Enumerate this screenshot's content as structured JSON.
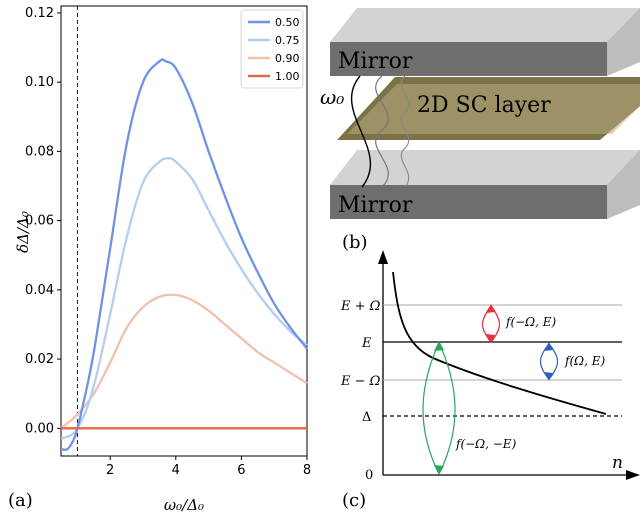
{
  "chart_data": {
    "type": "line",
    "panel_label": "(a)",
    "xlabel": "ω₀/Δ₀",
    "ylabel": "δΔ/Δ₀",
    "xlim": [
      0.5,
      8
    ],
    "ylim": [
      -0.008,
      0.122
    ],
    "x_ticks": [
      "2",
      "4",
      "6",
      "8"
    ],
    "y_ticks": [
      "0.00",
      "0.02",
      "0.04",
      "0.06",
      "0.08",
      "0.10",
      "0.12"
    ],
    "x_tick_values": [
      2,
      4,
      6,
      8
    ],
    "y_tick_values": [
      0,
      0.02,
      0.04,
      0.06,
      0.08,
      0.1,
      0.12
    ],
    "vline_x": 1.0,
    "zero_line_y": 0.0,
    "legend_position": "top-right",
    "series": [
      {
        "name": "0.50",
        "color": "#6f92e6",
        "x": [
          0.5,
          0.7,
          0.9,
          1.0,
          1.2,
          1.5,
          2.0,
          2.5,
          3.0,
          3.5,
          3.7,
          4.0,
          4.5,
          5.0,
          5.5,
          6.0,
          6.5,
          7.0,
          7.5,
          8.0
        ],
        "y": [
          -0.006,
          -0.006,
          -0.003,
          0.0,
          0.008,
          0.022,
          0.052,
          0.082,
          0.1,
          0.106,
          0.106,
          0.104,
          0.094,
          0.08,
          0.067,
          0.055,
          0.045,
          0.036,
          0.029,
          0.023
        ]
      },
      {
        "name": "0.75",
        "color": "#b5cdf0",
        "x": [
          0.5,
          0.8,
          1.0,
          1.3,
          1.6,
          2.0,
          2.5,
          3.0,
          3.5,
          3.8,
          4.0,
          4.5,
          5.0,
          5.5,
          6.0,
          6.5,
          7.0,
          7.5,
          8.0
        ],
        "y": [
          -0.003,
          -0.002,
          0.0,
          0.006,
          0.016,
          0.033,
          0.055,
          0.071,
          0.077,
          0.078,
          0.077,
          0.072,
          0.063,
          0.054,
          0.046,
          0.039,
          0.033,
          0.028,
          0.024
        ]
      },
      {
        "name": "0.90",
        "color": "#efc1aa",
        "x": [
          0.5,
          1.0,
          1.5,
          2.0,
          2.5,
          3.0,
          3.5,
          4.0,
          4.5,
          5.0,
          5.5,
          6.0,
          6.5,
          7.0,
          7.5,
          8.0
        ],
        "y": [
          0.0,
          0.004,
          0.01,
          0.019,
          0.029,
          0.035,
          0.038,
          0.0385,
          0.037,
          0.034,
          0.03,
          0.026,
          0.022,
          0.019,
          0.016,
          0.013
        ]
      },
      {
        "name": "1.00",
        "color": "#e06a45",
        "x": [
          0.5,
          8.0
        ],
        "y": [
          0.0,
          0.0
        ]
      }
    ]
  },
  "diagram_b": {
    "panel_label": "(b)",
    "top_mirror": "Mirror",
    "bottom_mirror": "Mirror",
    "layer": "2D SC layer",
    "omega_label": "ω₀"
  },
  "diagram_c": {
    "panel_label": "(c)",
    "x_axis": "n",
    "levels": [
      "E + Ω",
      "E",
      "E − Ω",
      "Δ",
      "0"
    ],
    "red_arrow": "f(−Ω, E)",
    "blue_arrow": "f(Ω, E)",
    "green_arrow": "f(−Ω, −E)",
    "colors": {
      "red": "#e8303a",
      "blue": "#2b5fb8",
      "green": "#29a65a"
    }
  }
}
